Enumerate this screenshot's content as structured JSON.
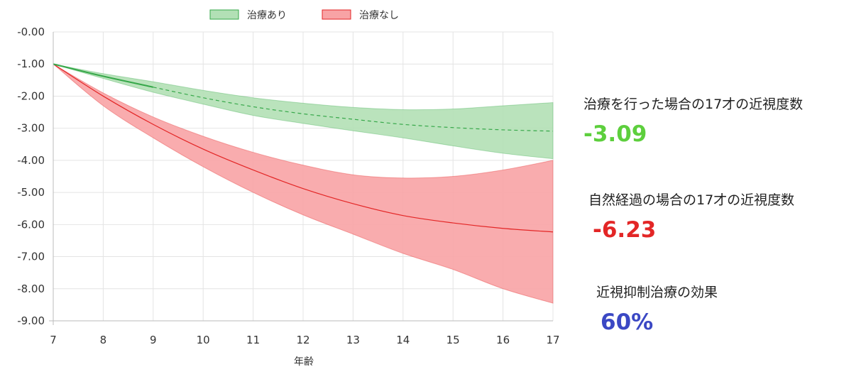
{
  "chart_data": {
    "type": "area",
    "xlabel": "年齢",
    "ylabel": "",
    "xlim": [
      7,
      17
    ],
    "ylim": [
      -9,
      0
    ],
    "x_ticks": [
      "7",
      "8",
      "9",
      "10",
      "11",
      "12",
      "13",
      "14",
      "15",
      "16",
      "17"
    ],
    "y_ticks": [
      "-0.00",
      "-1.00",
      "-2.00",
      "-3.00",
      "-4.00",
      "-5.00",
      "-6.00",
      "-7.00",
      "-8.00",
      "-9.00"
    ],
    "y_tick_values": [
      0,
      -1,
      -2,
      -3,
      -4,
      -5,
      -6,
      -7,
      -8,
      -9
    ],
    "grid": true,
    "legend": "top",
    "x": [
      7,
      8,
      9,
      10,
      11,
      12,
      13,
      14,
      15,
      16,
      17
    ],
    "series": [
      {
        "name": "治療あり",
        "color": "#37a84a",
        "fill": "#b2e0b5",
        "center": [
          -1.0,
          -1.38,
          -1.72,
          -2.05,
          -2.33,
          -2.55,
          -2.72,
          -2.88,
          -2.98,
          -3.05,
          -3.09
        ],
        "upper": [
          -1.0,
          -1.3,
          -1.55,
          -1.82,
          -2.05,
          -2.22,
          -2.35,
          -2.42,
          -2.4,
          -2.3,
          -2.2
        ],
        "lower": [
          -1.0,
          -1.45,
          -1.88,
          -2.25,
          -2.6,
          -2.85,
          -3.08,
          -3.3,
          -3.55,
          -3.78,
          -3.95
        ],
        "solid_until": 9
      },
      {
        "name": "治療なし",
        "color": "#e32626",
        "fill": "#f8a3a5",
        "center": [
          -1.0,
          -2.0,
          -2.88,
          -3.65,
          -4.3,
          -4.88,
          -5.35,
          -5.72,
          -5.95,
          -6.12,
          -6.23
        ],
        "upper": [
          -1.0,
          -1.9,
          -2.65,
          -3.25,
          -3.75,
          -4.15,
          -4.45,
          -4.55,
          -4.5,
          -4.3,
          -4.0
        ],
        "lower": [
          -1.0,
          -2.3,
          -3.3,
          -4.2,
          -5.0,
          -5.7,
          -6.3,
          -6.9,
          -7.4,
          -8.0,
          -8.45
        ],
        "solid_until": 17
      }
    ]
  },
  "stats": {
    "treated_label": "治療を行った場合の17才の近視度数",
    "treated_value": "-3.09",
    "treated_color": "#5dcf3d",
    "natural_label": "自然経過の場合の17才の近視度数",
    "natural_value": "-6.23",
    "natural_color": "#e32626",
    "effect_label": "近視抑制治療の効果",
    "effect_value": "60%",
    "effect_color": "#3b48c4"
  }
}
